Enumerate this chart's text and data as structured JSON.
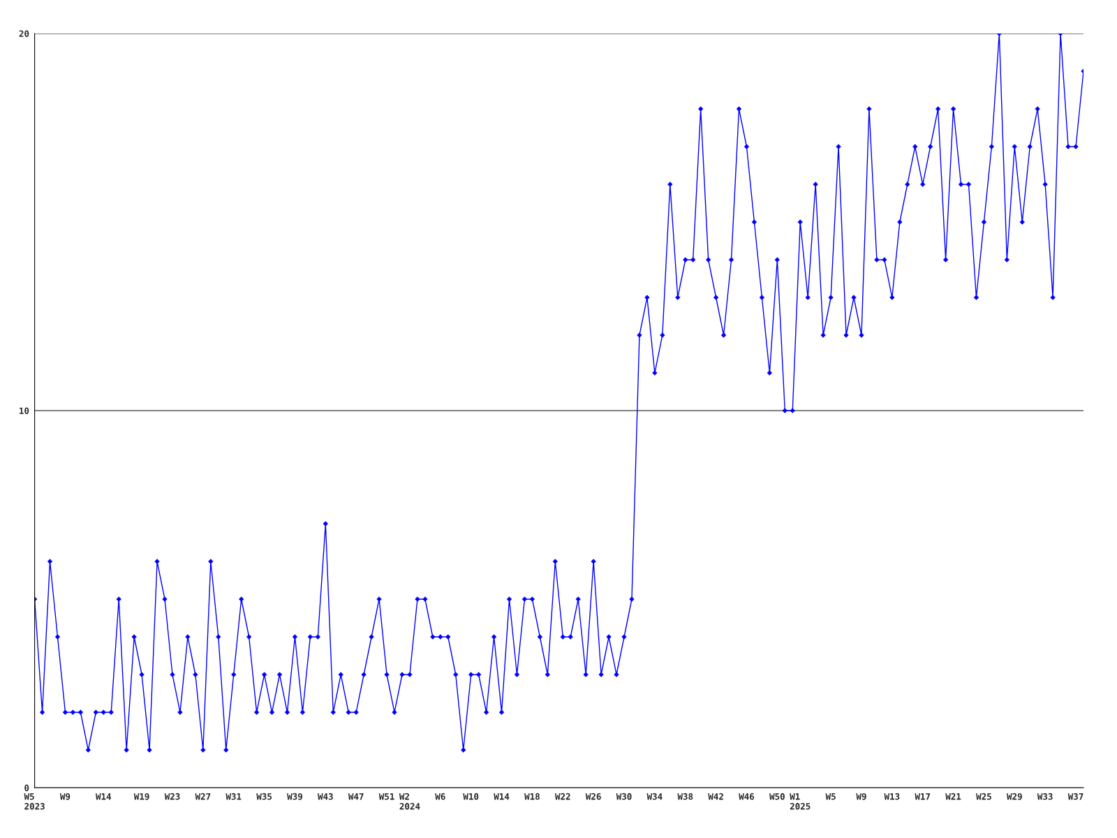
{
  "chart_data": {
    "type": "line",
    "categories": [
      "W5\n2023",
      null,
      null,
      null,
      "W9",
      null,
      null,
      null,
      null,
      "W14",
      null,
      null,
      null,
      null,
      "W19",
      null,
      null,
      null,
      "W23",
      null,
      null,
      null,
      "W27",
      null,
      null,
      null,
      "W31",
      null,
      null,
      null,
      "W35",
      null,
      null,
      null,
      "W39",
      null,
      null,
      null,
      "W43",
      null,
      null,
      null,
      "W47",
      null,
      null,
      null,
      "W51",
      null,
      null,
      "W2\n2024",
      null,
      null,
      null,
      "W6",
      null,
      null,
      null,
      "W10",
      null,
      null,
      null,
      "W14",
      null,
      null,
      null,
      "W18",
      null,
      null,
      null,
      "W22",
      null,
      null,
      null,
      "W26",
      null,
      null,
      null,
      "W30",
      null,
      null,
      null,
      "W34",
      null,
      null,
      null,
      "W38",
      null,
      null,
      null,
      "W42",
      null,
      null,
      null,
      "W46",
      null,
      null,
      null,
      "W50",
      null,
      null,
      "W1\n2025",
      null,
      null,
      null,
      "W5",
      null,
      null,
      null,
      "W9",
      null,
      null,
      null,
      "W13",
      null,
      null,
      null,
      "W17",
      null,
      null,
      null,
      "W21",
      null,
      null,
      null,
      "W25",
      null,
      null,
      null,
      "W29",
      null,
      null,
      null,
      "W33",
      null,
      null,
      null,
      "W37",
      null
    ],
    "series": [
      {
        "color": "#0000ff",
        "values": [
          5,
          2,
          6,
          4,
          2,
          2,
          2,
          1,
          2,
          2,
          2,
          5,
          1,
          4,
          3,
          1,
          6,
          5,
          3,
          2,
          4,
          3,
          1,
          6,
          4,
          1,
          3,
          5,
          4,
          2,
          3,
          2,
          3,
          2,
          4,
          2,
          4,
          4,
          7,
          2,
          3,
          2,
          2,
          3,
          4,
          5,
          3,
          2,
          3,
          3,
          5,
          5,
          4,
          4,
          4,
          3,
          1,
          3,
          3,
          2,
          4,
          2,
          5,
          3,
          5,
          5,
          4,
          3,
          6,
          4,
          4,
          5,
          3,
          6,
          3,
          4,
          3,
          4,
          5,
          12,
          13,
          11,
          12,
          16,
          13,
          14,
          14,
          18,
          14,
          13,
          12,
          14,
          18,
          17,
          15,
          13,
          11,
          14,
          10,
          10,
          15,
          13,
          16,
          12,
          13,
          17,
          12,
          13,
          12,
          18,
          14,
          14,
          13,
          15,
          16,
          17,
          16,
          17,
          18,
          14,
          18,
          16,
          16,
          13,
          15,
          17,
          20,
          14,
          17,
          15,
          17,
          18,
          16,
          13,
          20,
          17,
          17,
          19
        ]
      }
    ],
    "ylim": [
      0,
      20
    ],
    "yticks": [
      0,
      10,
      20
    ],
    "grid": "y",
    "marker": "diamond",
    "line_style": "solid"
  }
}
